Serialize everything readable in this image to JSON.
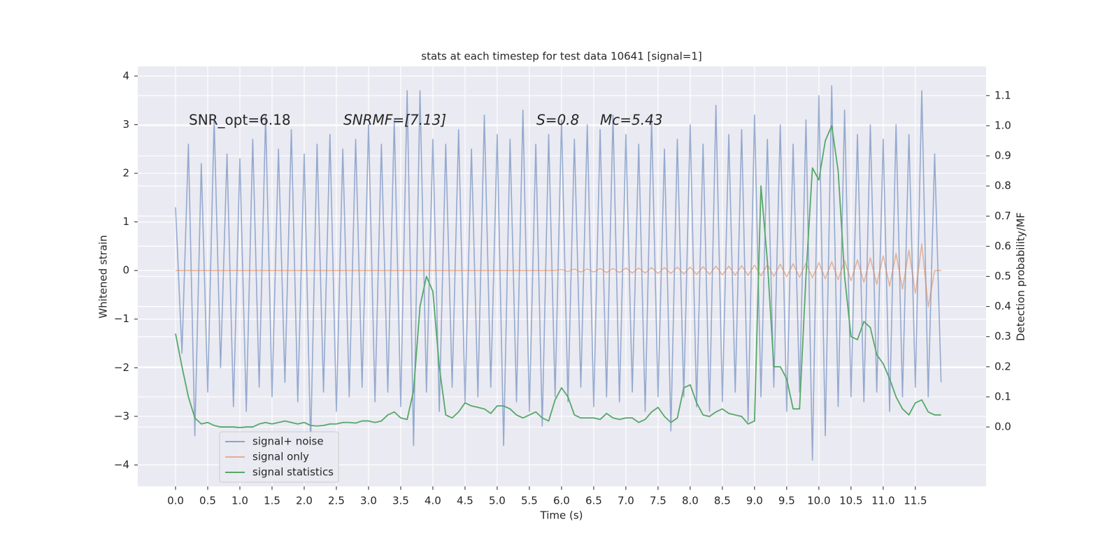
{
  "chart_data": {
    "type": "line",
    "title": "stats at each timestep for test data 10641 [signal=1]",
    "xlabel": "Time (s)",
    "ylabel": "Whitened strain",
    "y2label": "Detection probability/MF",
    "annotations": [
      "SNR_opt=6.18",
      "SNRMF=[7.13]",
      "S=0.8",
      "Mc=5.43"
    ],
    "grid": true,
    "legend": "lower left",
    "xlim": [
      -0.587,
      12.6
    ],
    "ylim": [
      -4.44,
      4.2
    ],
    "y2lim": [
      -0.197,
      1.197
    ],
    "xticks": [
      {
        "value": 0,
        "label": "0.0"
      },
      0.5,
      {
        "value": 1,
        "label": "1.0"
      },
      1.5,
      {
        "value": 2,
        "label": "2.0"
      },
      2.5,
      {
        "value": 3,
        "label": "3.0"
      },
      3.5,
      {
        "value": 4,
        "label": "4.0"
      },
      4.5,
      {
        "value": 5,
        "label": "5.0"
      },
      5.5,
      {
        "value": 6,
        "label": "6.0"
      },
      6.5,
      {
        "value": 7,
        "label": "7.0"
      },
      7.5,
      {
        "value": 8,
        "label": "8.0"
      },
      8.5,
      {
        "value": 9,
        "label": "9.0"
      },
      9.5,
      {
        "value": 10,
        "label": "10.0"
      },
      10.5,
      {
        "value": 11,
        "label": "11.0"
      },
      11.5
    ],
    "yticks": [
      {
        "value": -4,
        "label": "−4"
      },
      {
        "value": -3,
        "label": "−3"
      },
      {
        "value": -2,
        "label": "−2"
      },
      {
        "value": -1,
        "label": "−1"
      },
      0,
      1,
      2,
      3,
      4
    ],
    "y2ticks": [
      {
        "value": 0,
        "label": "0.0"
      },
      0.1,
      0.2,
      0.3,
      0.4,
      0.5,
      0.6,
      0.7,
      0.8,
      0.9,
      {
        "value": 1,
        "label": "1.0"
      },
      1.1
    ],
    "x": [
      0,
      0.1,
      0.2,
      0.3,
      0.4,
      0.5,
      0.6,
      0.7,
      0.8,
      0.9,
      1,
      1.1,
      1.2,
      1.3,
      1.4,
      1.5,
      1.6,
      1.7,
      1.8,
      1.9,
      2,
      2.1,
      2.2,
      2.3,
      2.4,
      2.5,
      2.6,
      2.7,
      2.8,
      2.9,
      3,
      3.1,
      3.2,
      3.3,
      3.4,
      3.5,
      3.6,
      3.7,
      3.8,
      3.9,
      4,
      4.1,
      4.2,
      4.3,
      4.4,
      4.5,
      4.6,
      4.7,
      4.8,
      4.9,
      5,
      5.1,
      5.2,
      5.3,
      5.4,
      5.5,
      5.6,
      5.7,
      5.8,
      5.9,
      6,
      6.1,
      6.2,
      6.3,
      6.4,
      6.5,
      6.6,
      6.7,
      6.8,
      6.9,
      7,
      7.1,
      7.2,
      7.3,
      7.4,
      7.5,
      7.6,
      7.7,
      7.8,
      7.9,
      8,
      8.1,
      8.2,
      8.3,
      8.4,
      8.5,
      8.6,
      8.7,
      8.8,
      8.9,
      9,
      9.1,
      9.2,
      9.3,
      9.4,
      9.5,
      9.6,
      9.7,
      9.8,
      9.9,
      10,
      10.1,
      10.2,
      10.3,
      10.4,
      10.5,
      10.6,
      10.7,
      10.8,
      10.9,
      11,
      11.1,
      11.2,
      11.3,
      11.4,
      11.5,
      11.6,
      11.7,
      11.8,
      11.9
    ],
    "series": [
      {
        "name": "signal+ noise",
        "color": "#4c72b0",
        "values": [
          1.3,
          -1.7,
          2.6,
          -3.4,
          2.2,
          -2.5,
          3.1,
          -2.0,
          2.4,
          -2.8,
          2.3,
          -2.9,
          2.7,
          -2.4,
          3.2,
          -2.6,
          2.5,
          -2.3,
          2.9,
          -2.7,
          2.4,
          -3.6,
          2.6,
          -2.5,
          2.8,
          -2.9,
          2.5,
          -2.6,
          2.7,
          -2.4,
          3.0,
          -2.7,
          2.6,
          -2.5,
          3.1,
          -2.8,
          3.7,
          -3.6,
          3.7,
          -2.5,
          2.7,
          -2.9,
          2.6,
          -2.4,
          2.9,
          -2.7,
          2.5,
          -2.6,
          3.2,
          -2.4,
          2.8,
          -3.6,
          2.7,
          -2.7,
          3.3,
          -2.9,
          2.6,
          -3.2,
          2.8,
          -2.6,
          3.1,
          -2.7,
          2.7,
          -2.4,
          3.0,
          -2.8,
          2.9,
          -2.6,
          3.2,
          -2.7,
          2.8,
          -2.5,
          2.6,
          -2.9,
          3.1,
          -2.6,
          2.5,
          -3.3,
          2.7,
          -2.6,
          3.0,
          -2.8,
          2.6,
          -2.9,
          3.4,
          -2.7,
          2.8,
          -2.5,
          2.9,
          -3.1,
          3.2,
          -2.6,
          2.7,
          -2.4,
          3.0,
          -2.9,
          2.6,
          -2.5,
          3.1,
          -3.9,
          3.6,
          -3.4,
          3.8,
          -2.8,
          3.3,
          -2.6,
          2.8,
          -2.7,
          3.0,
          -2.5,
          2.7,
          -2.9,
          3.0,
          -2.6,
          2.8,
          -2.4,
          3.7,
          -2.6,
          2.4,
          -2.3
        ]
      },
      {
        "name": "signal only",
        "color": "#dd8452",
        "values": [
          0,
          0,
          0,
          0,
          0,
          0,
          0,
          0,
          0,
          0,
          0,
          0,
          0,
          0,
          0,
          0,
          0,
          0,
          0,
          0,
          0,
          0,
          0,
          0,
          0,
          0,
          0,
          0,
          0,
          0,
          0,
          0,
          0,
          0,
          0,
          0,
          0,
          0,
          0,
          0,
          0,
          0,
          0,
          0,
          0,
          0,
          0,
          0,
          0,
          0,
          0,
          0,
          0,
          0,
          0,
          0,
          0,
          0,
          0,
          0,
          0.02,
          -0.02,
          0.03,
          -0.03,
          0.03,
          -0.03,
          0.04,
          -0.04,
          0.04,
          -0.04,
          0.05,
          -0.05,
          0.05,
          -0.05,
          0.06,
          -0.06,
          0.06,
          -0.06,
          0.07,
          -0.07,
          0.07,
          -0.08,
          0.08,
          -0.08,
          0.09,
          -0.09,
          0.09,
          -0.1,
          0.1,
          -0.1,
          0.11,
          -0.11,
          0.12,
          -0.12,
          0.13,
          -0.13,
          0.14,
          -0.14,
          0.15,
          -0.15,
          0.16,
          -0.17,
          0.18,
          -0.19,
          0.2,
          -0.21,
          0.22,
          -0.24,
          0.26,
          -0.28,
          0.3,
          -0.32,
          0.35,
          -0.38,
          0.42,
          -0.47,
          0.55,
          -0.75,
          0,
          0
        ]
      },
      {
        "name": "signal statistics",
        "color": "#55a868",
        "axis": "y2",
        "values": [
          0.31,
          0.2,
          0.1,
          0.03,
          0.01,
          0.015,
          0.005,
          0,
          0,
          0,
          -0.002,
          0,
          0,
          0.01,
          0.015,
          0.01,
          0.015,
          0.02,
          0.015,
          0.01,
          0.015,
          0.005,
          0.003,
          0.005,
          0.01,
          0.01,
          0.015,
          0.015,
          0.013,
          0.02,
          0.02,
          0.015,
          0.02,
          0.04,
          0.05,
          0.03,
          0.025,
          0.12,
          0.4,
          0.5,
          0.45,
          0.2,
          0.04,
          0.03,
          0.05,
          0.08,
          0.07,
          0.065,
          0.06,
          0.045,
          0.07,
          0.07,
          0.06,
          0.04,
          0.03,
          0.04,
          0.05,
          0.03,
          0.02,
          0.09,
          0.13,
          0.1,
          0.04,
          0.03,
          0.03,
          0.03,
          0.025,
          0.045,
          0.03,
          0.025,
          0.03,
          0.03,
          0.015,
          0.025,
          0.05,
          0.065,
          0.035,
          0.015,
          0.03,
          0.13,
          0.14,
          0.08,
          0.04,
          0.035,
          0.05,
          0.06,
          0.045,
          0.04,
          0.035,
          0.01,
          0.02,
          0.8,
          0.55,
          0.2,
          0.2,
          0.16,
          0.06,
          0.06,
          0.5,
          0.86,
          0.82,
          0.95,
          1.0,
          0.85,
          0.5,
          0.3,
          0.29,
          0.35,
          0.33,
          0.24,
          0.21,
          0.16,
          0.1,
          0.06,
          0.04,
          0.08,
          0.09,
          0.05,
          0.04,
          0.04
        ]
      }
    ]
  }
}
